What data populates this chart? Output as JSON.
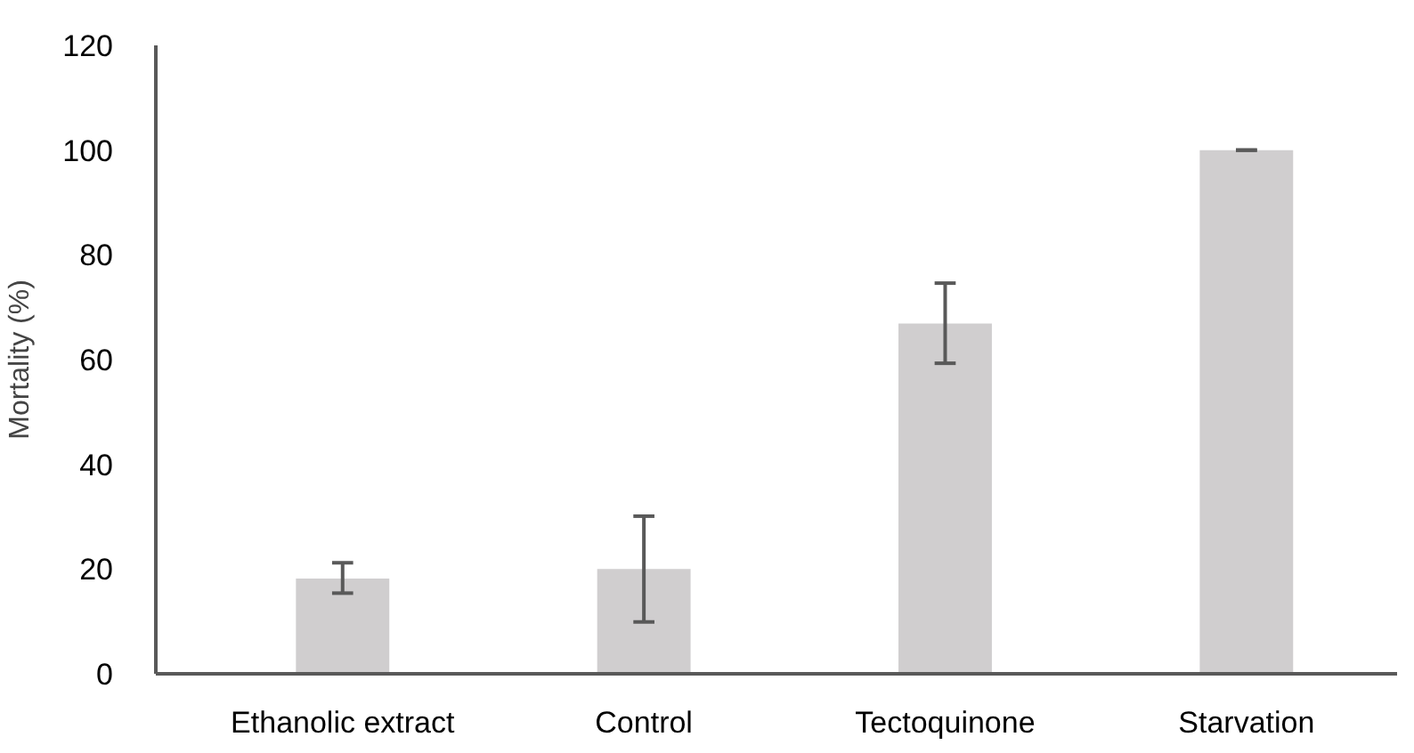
{
  "chart_data": {
    "type": "bar",
    "ylabel": "Mortality (%)",
    "categories": [
      "Ethanolic extract",
      "Control",
      "Tectoquinone",
      "Starvation"
    ],
    "values": [
      18.2,
      20.0,
      66.9,
      100
    ],
    "errors": [
      [
        15.4,
        21.2
      ],
      [
        9.9,
        30.1
      ],
      [
        59.3,
        74.6
      ],
      [
        100,
        100
      ]
    ],
    "color": "#d0cecf",
    "ylim": [
      0,
      120
    ],
    "yticks": [
      0,
      20,
      40,
      60,
      80,
      100,
      120
    ],
    "grid": false
  }
}
